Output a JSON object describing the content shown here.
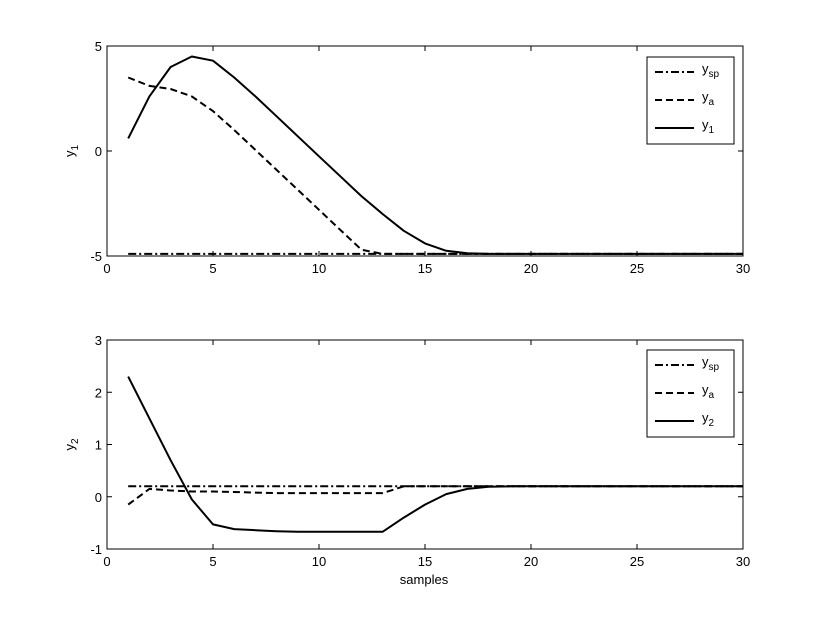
{
  "figure": {
    "xlabel": "samples"
  },
  "chart_data": [
    {
      "type": "line",
      "ylabel": "y",
      "ylabel_sub": "1",
      "xlim": [
        0,
        30
      ],
      "ylim": [
        -5,
        5
      ],
      "xticks": [
        0,
        5,
        10,
        15,
        20,
        25,
        30
      ],
      "yticks": [
        -5,
        0,
        5
      ],
      "legend_position": "top-right",
      "series": [
        {
          "name": "y",
          "name_sub": "sp",
          "style": "dashdot",
          "x": [
            1,
            30
          ],
          "y": [
            -4.9,
            -4.9
          ]
        },
        {
          "name": "y",
          "name_sub": "a",
          "style": "dashed",
          "x": [
            1,
            2,
            3,
            4,
            5,
            6,
            7,
            8,
            9,
            10,
            11,
            12,
            13,
            30
          ],
          "y": [
            3.5,
            3.1,
            2.95,
            2.6,
            1.9,
            1.0,
            0.05,
            -0.9,
            -1.85,
            -2.8,
            -3.75,
            -4.7,
            -4.9,
            -4.9
          ]
        },
        {
          "name": "y",
          "name_sub": "1",
          "style": "solid",
          "x": [
            1,
            2,
            3,
            4,
            5,
            6,
            7,
            8,
            9,
            10,
            11,
            12,
            13,
            14,
            15,
            16,
            17,
            18,
            20,
            30
          ],
          "y": [
            0.6,
            2.6,
            4.0,
            4.5,
            4.3,
            3.5,
            2.6,
            1.65,
            0.7,
            -0.25,
            -1.2,
            -2.15,
            -3.0,
            -3.8,
            -4.4,
            -4.75,
            -4.87,
            -4.9,
            -4.9,
            -4.9
          ]
        }
      ]
    },
    {
      "type": "line",
      "ylabel": "y",
      "ylabel_sub": "2",
      "xlim": [
        0,
        30
      ],
      "ylim": [
        -1,
        3
      ],
      "xticks": [
        0,
        5,
        10,
        15,
        20,
        25,
        30
      ],
      "yticks": [
        -1,
        0,
        1,
        2,
        3
      ],
      "legend_position": "top-right",
      "series": [
        {
          "name": "y",
          "name_sub": "sp",
          "style": "dashdot",
          "x": [
            1,
            30
          ],
          "y": [
            0.2,
            0.2
          ]
        },
        {
          "name": "y",
          "name_sub": "a",
          "style": "dashed",
          "x": [
            1,
            2,
            3,
            4,
            5,
            6,
            7,
            8,
            9,
            10,
            11,
            12,
            13,
            14,
            15,
            16,
            17,
            18,
            30
          ],
          "y": [
            -0.15,
            0.15,
            0.12,
            0.1,
            0.1,
            0.09,
            0.08,
            0.07,
            0.07,
            0.07,
            0.07,
            0.07,
            0.07,
            0.2,
            0.2,
            0.2,
            0.2,
            0.2,
            0.2
          ]
        },
        {
          "name": "y",
          "name_sub": "2",
          "style": "solid",
          "x": [
            1,
            2,
            3,
            4,
            5,
            6,
            7,
            8,
            9,
            10,
            11,
            12,
            13,
            14,
            15,
            16,
            17,
            18,
            19,
            20,
            30
          ],
          "y": [
            2.3,
            1.5,
            0.7,
            -0.05,
            -0.53,
            -0.62,
            -0.64,
            -0.66,
            -0.67,
            -0.67,
            -0.67,
            -0.67,
            -0.67,
            -0.4,
            -0.15,
            0.05,
            0.15,
            0.19,
            0.2,
            0.2,
            0.2
          ]
        }
      ]
    }
  ]
}
